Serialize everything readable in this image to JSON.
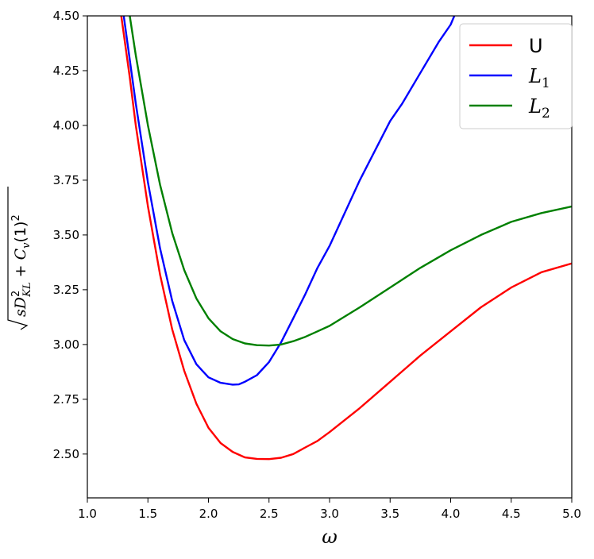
{
  "chart_data": {
    "type": "line",
    "title": "",
    "xlabel": "ω",
    "ylabel": "√(sD_KL² + C_v(1)²)",
    "xlim": [
      1.0,
      5.0
    ],
    "ylim": [
      2.3,
      4.5
    ],
    "xticks": [
      "1.0",
      "1.5",
      "2.0",
      "2.5",
      "3.0",
      "3.5",
      "4.0",
      "4.5",
      "5.0"
    ],
    "yticks": [
      "2.50",
      "2.75",
      "3.00",
      "3.25",
      "3.50",
      "3.75",
      "4.00",
      "4.25",
      "4.50"
    ],
    "grid": false,
    "legend_position": "top-right",
    "series": [
      {
        "name": "U",
        "color": "#ff0000",
        "x": [
          1.28,
          1.35,
          1.4,
          1.5,
          1.6,
          1.7,
          1.8,
          1.9,
          2.0,
          2.1,
          2.2,
          2.3,
          2.4,
          2.5,
          2.6,
          2.7,
          2.8,
          2.9,
          3.0,
          3.25,
          3.5,
          3.75,
          4.0,
          4.25,
          4.5,
          4.75,
          5.0
        ],
        "y": [
          4.5,
          4.22,
          4.0,
          3.63,
          3.32,
          3.07,
          2.88,
          2.73,
          2.62,
          2.55,
          2.51,
          2.485,
          2.478,
          2.477,
          2.483,
          2.5,
          2.53,
          2.56,
          2.6,
          2.71,
          2.83,
          2.95,
          3.06,
          3.17,
          3.26,
          3.33,
          3.37
        ]
      },
      {
        "name": "L_1",
        "color": "#0000ff",
        "x": [
          1.3,
          1.35,
          1.4,
          1.5,
          1.6,
          1.7,
          1.8,
          1.9,
          2.0,
          2.1,
          2.2,
          2.25,
          2.3,
          2.4,
          2.5,
          2.6,
          2.7,
          2.8,
          2.9,
          3.0,
          3.25,
          3.5,
          3.6,
          3.75,
          3.9,
          4.0,
          4.03
        ],
        "y": [
          4.5,
          4.3,
          4.1,
          3.74,
          3.44,
          3.2,
          3.02,
          2.91,
          2.85,
          2.825,
          2.817,
          2.818,
          2.83,
          2.86,
          2.92,
          3.01,
          3.12,
          3.23,
          3.35,
          3.45,
          3.75,
          4.02,
          4.1,
          4.24,
          4.38,
          4.46,
          4.5
        ]
      },
      {
        "name": "L_2",
        "color": "#008000",
        "x": [
          1.35,
          1.4,
          1.5,
          1.6,
          1.7,
          1.8,
          1.9,
          2.0,
          2.1,
          2.2,
          2.3,
          2.4,
          2.5,
          2.6,
          2.7,
          2.8,
          2.9,
          3.0,
          3.25,
          3.5,
          3.75,
          4.0,
          4.25,
          4.5,
          4.75,
          5.0
        ],
        "y": [
          4.5,
          4.32,
          4.0,
          3.73,
          3.51,
          3.34,
          3.21,
          3.12,
          3.06,
          3.025,
          3.005,
          2.997,
          2.995,
          3.0,
          3.015,
          3.035,
          3.06,
          3.085,
          3.17,
          3.26,
          3.35,
          3.43,
          3.5,
          3.56,
          3.6,
          3.63
        ]
      }
    ]
  }
}
